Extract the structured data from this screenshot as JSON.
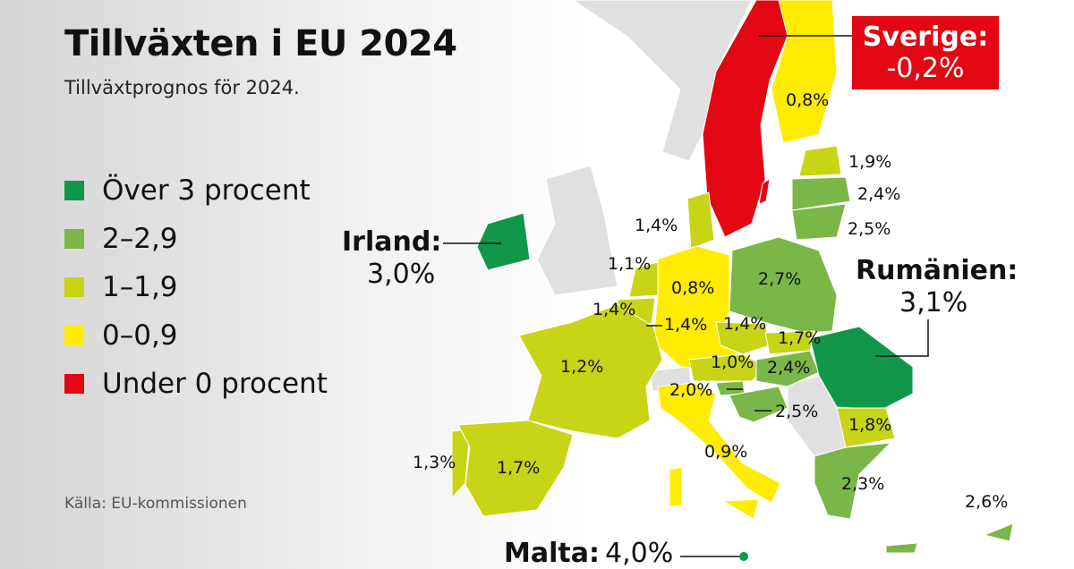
{
  "title": "Tillväxten i EU 2024",
  "subtitle": "Tillväxtprognos för 2024.",
  "legend": [
    {
      "label": "Över 3 procent",
      "color": "#12964a"
    },
    {
      "label": "2–2,9",
      "color": "#7ab648"
    },
    {
      "label": "1–1,9",
      "color": "#c8d416"
    },
    {
      "label": "0–0,9",
      "color": "#ffec00"
    },
    {
      "label": "Under 0 procent",
      "color": "#e30613"
    }
  ],
  "source": "Källa: EU-kommissionen",
  "callouts": {
    "sweden": {
      "name": "Sverige:",
      "value": "-0,2%"
    },
    "ireland": {
      "name": "Irland:",
      "value": "3,0%"
    },
    "romania": {
      "name": "Rumänien:",
      "value": "3,1%"
    },
    "malta": {
      "name": "Malta:",
      "value": "4,0%"
    }
  },
  "countries": {
    "finland": "0,8%",
    "estonia": "1,9%",
    "latvia": "2,4%",
    "lithuania": "2,5%",
    "denmark": "1,4%",
    "netherlands": "1,1%",
    "belgium": "1,4%",
    "luxembourg": "1,4%",
    "germany": "0,8%",
    "poland": "2,7%",
    "czechia": "1,4%",
    "slovakia": "1,7%",
    "austria": "1,0%",
    "hungary": "2,4%",
    "slovenia": "2,0%",
    "croatia": "2,5%",
    "france": "1,2%",
    "spain": "1,7%",
    "portugal": "1,3%",
    "italy": "0,9%",
    "bulgaria": "1,8%",
    "greece": "2,3%",
    "cyprus": "2,6%"
  },
  "colors": {
    "non_eu": "#e0e0e0"
  }
}
